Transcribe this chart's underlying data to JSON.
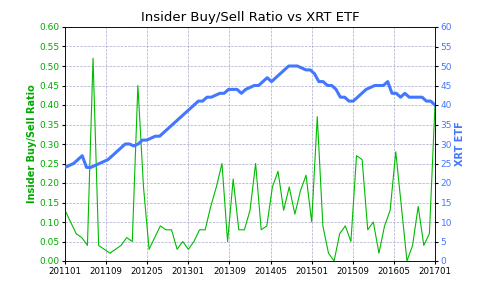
{
  "title": "Insider Buy/Sell Ratio vs XRT ETF",
  "ylabel_left": "Insider Buy/Sell Ratio",
  "ylabel_right": "XRT ETF",
  "ylim_left": [
    0.0,
    0.6
  ],
  "ylim_right": [
    0,
    60
  ],
  "xtick_labels": [
    "201101",
    "201109",
    "201205",
    "201301",
    "201309",
    "201405",
    "201501",
    "201509",
    "201605",
    "201701"
  ],
  "green_line_color": "#00bb00",
  "blue_line_color": "#4477ff",
  "title_color": "#000000",
  "axis_label_color_left": "#00aa00",
  "axis_label_color_right": "#4477ff",
  "background_color": "#ffffff",
  "grid_color": "#aaaacc",
  "green_y": [
    0.13,
    0.1,
    0.07,
    0.06,
    0.04,
    0.52,
    0.04,
    0.03,
    0.02,
    0.03,
    0.04,
    0.06,
    0.05,
    0.45,
    0.19,
    0.03,
    0.06,
    0.09,
    0.08,
    0.08,
    0.03,
    0.05,
    0.03,
    0.05,
    0.08,
    0.08,
    0.14,
    0.19,
    0.25,
    0.05,
    0.21,
    0.08,
    0.08,
    0.13,
    0.25,
    0.08,
    0.09,
    0.19,
    0.23,
    0.13,
    0.19,
    0.12,
    0.18,
    0.22,
    0.1,
    0.37,
    0.09,
    0.02,
    0.0,
    0.07,
    0.09,
    0.05,
    0.27,
    0.26,
    0.08,
    0.1,
    0.02,
    0.09,
    0.13,
    0.28,
    0.14,
    0.0,
    0.04,
    0.14,
    0.04,
    0.07,
    0.4
  ],
  "blue_y": [
    24,
    24.5,
    25,
    26,
    27,
    24,
    24,
    24.5,
    25,
    25.5,
    26,
    27,
    28,
    29,
    30,
    30,
    29.5,
    30,
    31,
    31,
    31.5,
    32,
    32,
    33,
    34,
    35,
    36,
    37,
    38,
    39,
    40,
    41,
    41,
    42,
    42,
    42.5,
    43,
    43,
    44,
    44,
    44,
    43,
    44,
    44.5,
    45,
    45,
    46,
    47,
    46,
    47,
    48,
    49,
    50,
    50,
    50,
    49.5,
    49,
    49,
    48,
    46,
    46,
    45,
    45,
    44,
    42,
    42,
    41,
    41,
    42,
    43,
    44,
    44.5,
    45,
    45,
    45,
    46,
    43,
    43,
    42,
    43,
    42,
    42,
    42,
    42,
    41,
    41,
    40
  ]
}
